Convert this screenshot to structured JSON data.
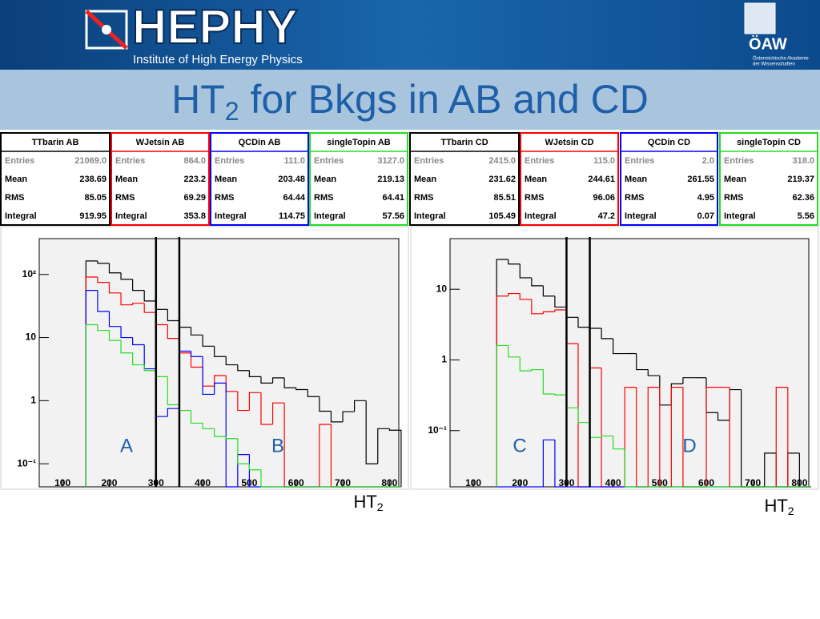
{
  "header": {
    "logo": "HEPHY",
    "subtitle": "Institute of High Energy Physics",
    "org": "ÖAW",
    "org_sub": [
      "Österreichische Akademie",
      "der Wissenschaften"
    ]
  },
  "title": {
    "main": "HT",
    "sub": "2",
    "rest": " for Bkgs in AB and CD"
  },
  "stat_labels": [
    "Entries",
    "Mean",
    "RMS",
    "Integral"
  ],
  "stat_boxes": [
    {
      "name": "TTbarin AB",
      "color": "#000000",
      "values": [
        "21069.0",
        "238.69",
        "85.05",
        "919.95"
      ]
    },
    {
      "name": "WJetsin AB",
      "color": "#ff0000",
      "values": [
        "864.0",
        "223.2",
        "69.29",
        "353.8"
      ]
    },
    {
      "name": "QCDin AB",
      "color": "#0000ff",
      "values": [
        "111.0",
        "203.48",
        "64.44",
        "114.75"
      ]
    },
    {
      "name": "singleTopin AB",
      "color": "#22dd22",
      "values": [
        "3127.0",
        "219.13",
        "64.41",
        "57.56"
      ]
    },
    {
      "name": "TTbarin CD",
      "color": "#000000",
      "values": [
        "2415.0",
        "231.62",
        "85.51",
        "105.49"
      ]
    },
    {
      "name": "WJetsin CD",
      "color": "#ff0000",
      "values": [
        "115.0",
        "244.61",
        "96.06",
        "47.2"
      ]
    },
    {
      "name": "QCDin CD",
      "color": "#0000ff",
      "values": [
        "2.0",
        "261.55",
        "4.95",
        "0.07"
      ]
    },
    {
      "name": "singleTopin CD",
      "color": "#22dd22",
      "values": [
        "318.0",
        "219.37",
        "62.36",
        "5.56"
      ]
    }
  ],
  "chart_data": [
    {
      "type": "step-histogram",
      "log_y": true,
      "grid": false,
      "x_label": {
        "main": "HT",
        "sub": "2"
      },
      "annotations": [
        "A",
        "B"
      ],
      "cut_lines": [
        300,
        350
      ],
      "bins": [
        150,
        175,
        200,
        225,
        250,
        275,
        300,
        325,
        350,
        375,
        400,
        425,
        450,
        475,
        500,
        525,
        550,
        575,
        600,
        625,
        650,
        675,
        700,
        725,
        750,
        775,
        800,
        825
      ],
      "xlim": [
        50,
        820
      ],
      "xticks": [
        100,
        200,
        300,
        400,
        500,
        600,
        700,
        800
      ],
      "ylim": [
        0.043,
        370
      ],
      "yticks": [
        {
          "value": 0.1,
          "label": "10⁻¹"
        },
        1,
        10,
        {
          "value": 100,
          "label": "10²"
        }
      ],
      "series": [
        {
          "name": "TTbar",
          "color": "#000000",
          "values": [
            164,
            150,
            106,
            84,
            56,
            38,
            28,
            18.5,
            14.6,
            11,
            7.3,
            5,
            3.7,
            3.0,
            2.4,
            1.9,
            2.3,
            1.6,
            1.5,
            1.16,
            0.68,
            0.46,
            0.67,
            1.0,
            0.1,
            0.36,
            0.34
          ]
        },
        {
          "name": "WJets",
          "color": "#ff0000",
          "values": [
            91,
            75,
            51,
            33,
            35,
            25,
            16,
            9.7,
            5.7,
            3.4,
            1.7,
            2.5,
            1.4,
            0.7,
            1.34,
            0.42,
            0.92,
            0,
            0,
            0,
            0.42,
            0,
            0,
            0,
            0,
            0,
            0
          ]
        },
        {
          "name": "QCD",
          "color": "#0000ff",
          "values": [
            56,
            26,
            15,
            10,
            7.7,
            3.2,
            0.56,
            0.75,
            6.1,
            5,
            1.26,
            1.9,
            0,
            0.14,
            0,
            0,
            0,
            0,
            0,
            0,
            0,
            0,
            0,
            0,
            0,
            0,
            0
          ]
        },
        {
          "name": "singleTop",
          "color": "#22dd22",
          "values": [
            16,
            13,
            9,
            5.7,
            3.7,
            3,
            2.4,
            0.86,
            0.7,
            0.44,
            0.36,
            0.27,
            0.25,
            0.1,
            0.08,
            0,
            0,
            0,
            0,
            0,
            0,
            0,
            0,
            0,
            0,
            0,
            0
          ]
        }
      ]
    },
    {
      "type": "step-histogram",
      "log_y": true,
      "grid": false,
      "x_label": {
        "main": "HT",
        "sub": "2"
      },
      "annotations": [
        "C",
        "D"
      ],
      "cut_lines": [
        300,
        350
      ],
      "bins": [
        150,
        175,
        200,
        225,
        250,
        275,
        300,
        325,
        350,
        375,
        400,
        425,
        450,
        475,
        500,
        525,
        550,
        575,
        600,
        625,
        650,
        675,
        700,
        725,
        750,
        775,
        800,
        825
      ],
      "xlim": [
        50,
        820
      ],
      "xticks": [
        100,
        200,
        300,
        400,
        500,
        600,
        700,
        800
      ],
      "ylim": [
        0.016,
        52
      ],
      "yticks": [
        {
          "value": 0.1,
          "label": "10⁻¹"
        },
        1,
        10
      ],
      "series": [
        {
          "name": "TTbar",
          "color": "#000000",
          "values": [
            26.4,
            22.7,
            14.5,
            11.2,
            8,
            5.6,
            4,
            2.9,
            2.8,
            2,
            1.23,
            1.23,
            0.73,
            0.6,
            0.23,
            0.46,
            0.56,
            0.56,
            0.18,
            0.14,
            0.38,
            0,
            0,
            0.048,
            0,
            0.048,
            0
          ]
        },
        {
          "name": "WJets",
          "color": "#ff0000",
          "values": [
            8,
            8.7,
            7.2,
            4.5,
            4.8,
            5.1,
            1.7,
            0,
            0.77,
            0,
            0,
            0.41,
            0,
            0.41,
            0,
            0.41,
            0,
            0,
            0.41,
            0.41,
            0,
            0,
            0,
            0,
            0.41,
            0,
            0
          ]
        },
        {
          "name": "QCD",
          "color": "#0000ff",
          "values": [
            0,
            0,
            0,
            0,
            0.074,
            0,
            0,
            0,
            0,
            0,
            0,
            0,
            0,
            0,
            0,
            0,
            0,
            0,
            0,
            0,
            0,
            0,
            0,
            0,
            0,
            0,
            0
          ]
        },
        {
          "name": "singleTop",
          "color": "#22dd22",
          "values": [
            1.6,
            1.1,
            0.7,
            0.73,
            0.33,
            0.32,
            0.21,
            0.13,
            0.08,
            0.084,
            0.055,
            0,
            0,
            0,
            0,
            0,
            0,
            0,
            0,
            0,
            0,
            0,
            0,
            0,
            0,
            0,
            0
          ]
        }
      ]
    }
  ]
}
